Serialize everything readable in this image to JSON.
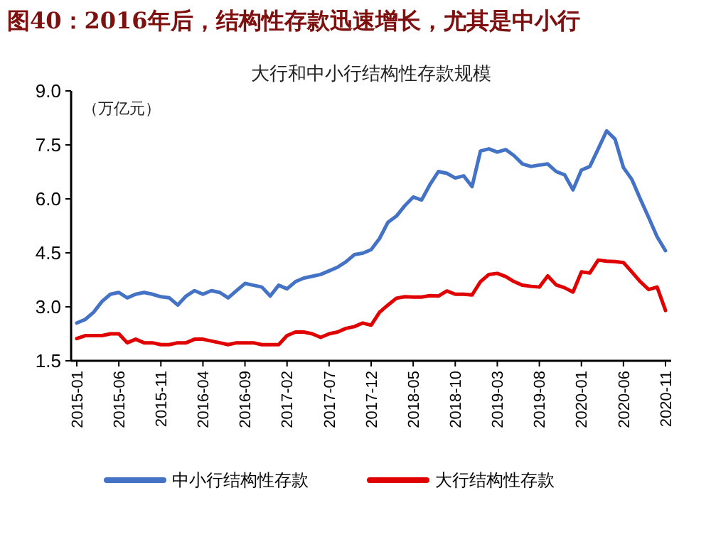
{
  "chart_data": {
    "type": "line",
    "title": "图40：2016年后，结构性存款迅速增长，尤其是中小行",
    "subtitle": "大行和中小行结构性存款规模",
    "ylabel": "（万亿元）",
    "categories": [
      "2015-01",
      null,
      null,
      null,
      null,
      "2015-06",
      null,
      null,
      null,
      null,
      "2015-11",
      null,
      null,
      null,
      null,
      "2016-04",
      null,
      null,
      null,
      null,
      "2016-09",
      null,
      null,
      null,
      null,
      "2017-02",
      null,
      null,
      null,
      null,
      "2017-07",
      null,
      null,
      null,
      null,
      "2017-12",
      null,
      null,
      null,
      null,
      "2018-05",
      null,
      null,
      null,
      null,
      "2018-10",
      null,
      null,
      null,
      null,
      "2019-03",
      null,
      null,
      null,
      null,
      "2019-08",
      null,
      null,
      null,
      null,
      "2020-01",
      null,
      null,
      null,
      null,
      "2020-06",
      null,
      null,
      null,
      null,
      "2020-11"
    ],
    "series": [
      {
        "name": "中小行结构性存款",
        "color": "#4472c4",
        "values": [
          2.55,
          2.65,
          2.85,
          3.15,
          3.35,
          3.4,
          3.25,
          3.35,
          3.4,
          3.35,
          3.28,
          3.25,
          3.05,
          3.3,
          3.45,
          3.35,
          3.45,
          3.4,
          3.25,
          3.45,
          3.65,
          3.6,
          3.55,
          3.3,
          3.6,
          3.5,
          3.7,
          3.8,
          3.85,
          3.9,
          4.0,
          4.1,
          4.25,
          4.45,
          4.49,
          4.59,
          4.9,
          5.35,
          5.52,
          5.81,
          6.05,
          5.97,
          6.4,
          6.76,
          6.71,
          6.58,
          6.64,
          6.34,
          7.33,
          7.39,
          7.3,
          7.37,
          7.2,
          6.97,
          6.9,
          6.94,
          6.97,
          6.76,
          6.67,
          6.25,
          6.8,
          6.9,
          7.39,
          7.89,
          7.66,
          6.87,
          6.54,
          6.0,
          5.48,
          4.95,
          4.56
        ]
      },
      {
        "name": "大行结构性存款",
        "color": "#e00000",
        "values": [
          2.12,
          2.2,
          2.2,
          2.2,
          2.25,
          2.25,
          2.0,
          2.1,
          2.0,
          2.0,
          1.95,
          1.95,
          2.0,
          2.0,
          2.1,
          2.1,
          2.05,
          2.0,
          1.95,
          2.0,
          2.0,
          2.0,
          1.95,
          1.95,
          1.95,
          2.2,
          2.3,
          2.3,
          2.25,
          2.15,
          2.25,
          2.3,
          2.4,
          2.45,
          2.55,
          2.49,
          2.85,
          3.05,
          3.24,
          3.28,
          3.27,
          3.27,
          3.31,
          3.3,
          3.44,
          3.35,
          3.35,
          3.33,
          3.7,
          3.9,
          3.93,
          3.84,
          3.7,
          3.6,
          3.57,
          3.55,
          3.86,
          3.61,
          3.53,
          3.41,
          3.97,
          3.94,
          4.3,
          4.27,
          4.26,
          4.23,
          3.97,
          3.7,
          3.48,
          3.55,
          2.9
        ]
      }
    ],
    "ylim": [
      1.5,
      9.0
    ],
    "yticks": [
      {
        "value": 1.5,
        "label": "1.5"
      },
      {
        "value": 3,
        "label": "3.0"
      },
      {
        "value": 4.5,
        "label": "4.5"
      },
      {
        "value": 6,
        "label": "6.0"
      },
      {
        "value": 7.5,
        "label": "7.5"
      },
      {
        "value": 9,
        "label": "9.0"
      }
    ],
    "grid": false,
    "legend": "bottom",
    "marker": "none",
    "line_style": "solid"
  }
}
